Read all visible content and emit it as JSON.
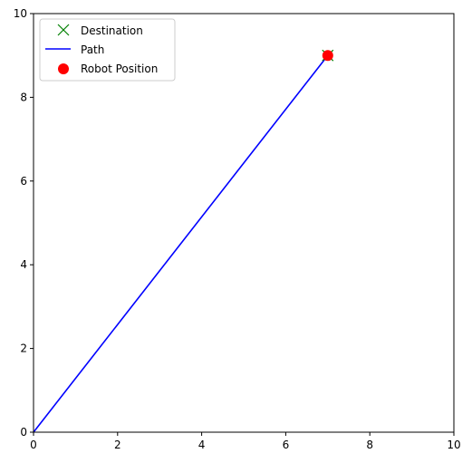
{
  "chart_data": {
    "type": "line",
    "title": "",
    "xlabel": "",
    "ylabel": "",
    "xlim": [
      0,
      10
    ],
    "ylim": [
      0,
      10
    ],
    "xticks": [
      0,
      2,
      4,
      6,
      8,
      10
    ],
    "yticks": [
      0,
      2,
      4,
      6,
      8,
      10
    ],
    "grid": false,
    "legend_position": "top-left",
    "series": [
      {
        "name": "Destination",
        "kind": "marker-x",
        "color": "#008000",
        "x": [
          7
        ],
        "y": [
          9
        ]
      },
      {
        "name": "Path",
        "kind": "line",
        "color": "#0000ff",
        "x": [
          0,
          7
        ],
        "y": [
          0,
          9
        ]
      },
      {
        "name": "Robot Position",
        "kind": "marker-circle",
        "color": "#ff0000",
        "x": [
          7
        ],
        "y": [
          9
        ]
      }
    ]
  }
}
